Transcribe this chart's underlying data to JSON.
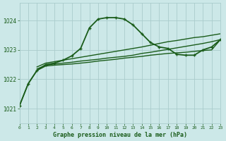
{
  "background_color": "#cce8e8",
  "grid_color": "#aacccc",
  "line_color": "#1a5c1a",
  "title": "Graphe pression niveau de la mer (hPa)",
  "xlim": [
    0,
    23
  ],
  "ylim": [
    1020.5,
    1024.6
  ],
  "yticks": [
    1021,
    1022,
    1023,
    1024
  ],
  "xticks": [
    0,
    1,
    2,
    3,
    4,
    5,
    6,
    7,
    8,
    9,
    10,
    11,
    12,
    13,
    14,
    15,
    16,
    17,
    18,
    19,
    20,
    21,
    22,
    23
  ],
  "series": [
    {
      "x": [
        0,
        1,
        2,
        3,
        4,
        5,
        6,
        7,
        8,
        9,
        10,
        11,
        12,
        13,
        14,
        15,
        16,
        17,
        18,
        19,
        20,
        21,
        22,
        23
      ],
      "y": [
        1021.1,
        1021.85,
        1022.3,
        1022.45,
        1022.48,
        1022.5,
        1022.52,
        1022.55,
        1022.58,
        1022.62,
        1022.65,
        1022.68,
        1022.72,
        1022.75,
        1022.78,
        1022.82,
        1022.85,
        1022.88,
        1022.9,
        1022.92,
        1022.95,
        1022.98,
        1023.0,
        1023.35
      ],
      "marker": null,
      "linewidth": 1.0,
      "with_markers": false
    },
    {
      "x": [
        2,
        3,
        4,
        5,
        6,
        7,
        8,
        9,
        10,
        11,
        12,
        13,
        14,
        15,
        16,
        17,
        18,
        19,
        20,
        21,
        22,
        23
      ],
      "y": [
        1022.35,
        1022.48,
        1022.52,
        1022.55,
        1022.58,
        1022.62,
        1022.65,
        1022.68,
        1022.72,
        1022.75,
        1022.78,
        1022.82,
        1022.88,
        1022.92,
        1022.97,
        1023.02,
        1023.07,
        1023.12,
        1023.17,
        1023.22,
        1023.28,
        1023.35
      ],
      "marker": null,
      "linewidth": 1.0,
      "with_markers": false
    },
    {
      "x": [
        2,
        3,
        4,
        5,
        6,
        7,
        8,
        9,
        10,
        11,
        12,
        13,
        14,
        15,
        16,
        17,
        18,
        19,
        20,
        21,
        22,
        23
      ],
      "y": [
        1022.42,
        1022.55,
        1022.6,
        1022.65,
        1022.7,
        1022.75,
        1022.8,
        1022.85,
        1022.9,
        1022.95,
        1023.0,
        1023.05,
        1023.1,
        1023.16,
        1023.22,
        1023.28,
        1023.32,
        1023.37,
        1023.42,
        1023.45,
        1023.5,
        1023.55
      ],
      "marker": null,
      "linewidth": 1.0,
      "with_markers": false
    },
    {
      "x": [
        0,
        1,
        2,
        3,
        4,
        5,
        6,
        7,
        8,
        9,
        10,
        11,
        12,
        13,
        14,
        15,
        16,
        17,
        18,
        19,
        20,
        21,
        22,
        23
      ],
      "y": [
        1021.1,
        1021.85,
        1022.3,
        1022.5,
        1022.55,
        1022.65,
        1022.8,
        1023.05,
        1023.75,
        1024.05,
        1024.1,
        1024.1,
        1024.05,
        1023.85,
        1023.55,
        1023.25,
        1023.1,
        1023.05,
        1022.85,
        1022.82,
        1022.82,
        1023.0,
        1023.1,
        1023.35
      ],
      "marker": "+",
      "linewidth": 1.3,
      "with_markers": true
    }
  ]
}
